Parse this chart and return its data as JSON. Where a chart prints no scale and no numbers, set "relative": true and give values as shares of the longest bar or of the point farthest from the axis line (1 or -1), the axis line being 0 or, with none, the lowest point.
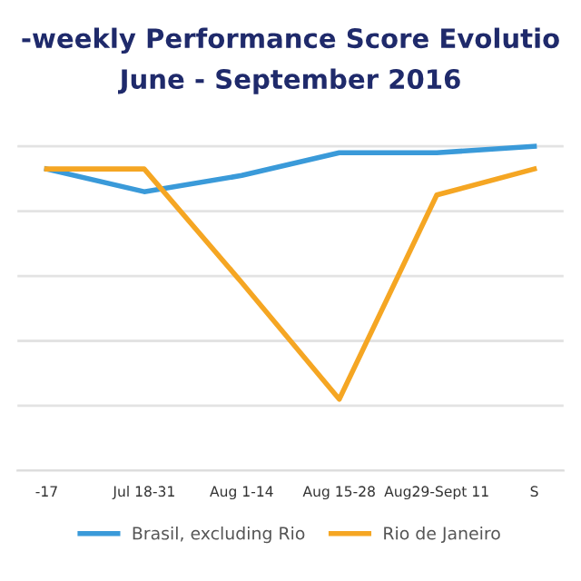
{
  "chart_data": {
    "type": "line",
    "title": "-weekly Performance Score Evolutio",
    "subtitle": "June - September 2016",
    "categories": [
      "-17",
      "Jul 18-31",
      "Aug 1-14",
      "Aug 15-28",
      "Aug29-Sept 11",
      "S"
    ],
    "relative": true,
    "series": [
      {
        "name": "Brasil, excluding Rio",
        "color": "#3a9ad9",
        "values": [
          0.93,
          0.86,
          0.91,
          0.98,
          0.98,
          1.0
        ]
      },
      {
        "name": "Rio de Janeiro",
        "color": "#f5a623",
        "values": [
          0.93,
          0.93,
          0.58,
          0.22,
          0.85,
          0.93
        ]
      }
    ],
    "grid": "y",
    "legend": "bottom",
    "marker": "none",
    "line_style": "solid"
  }
}
